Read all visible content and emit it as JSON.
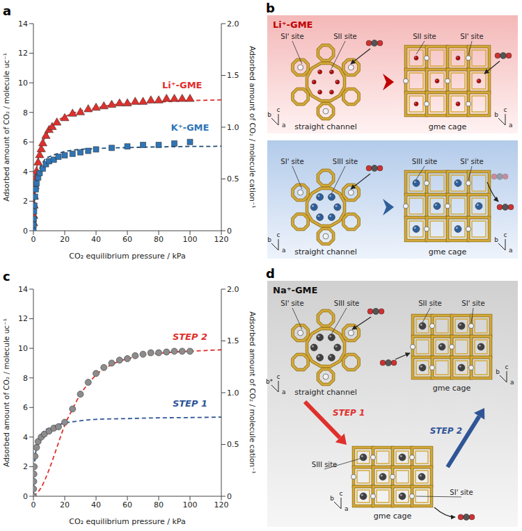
{
  "chart_data": [
    {
      "panel_label": "a",
      "type": "scatter",
      "x_label": "CO₂ equilibrium pressure / kPa",
      "y_label": "Adsorbed amount of CO₂ / molecule uc⁻¹",
      "y2_label": "Adsorbed amount of CO₂ / molecule cation⁻¹",
      "xlim": [
        0,
        120
      ],
      "xticks": [
        0,
        20,
        40,
        60,
        80,
        100,
        120
      ],
      "ylim": [
        0,
        14
      ],
      "yticks": [
        0,
        2,
        4,
        6,
        8,
        10,
        12,
        14
      ],
      "y2lim": [
        0,
        2
      ],
      "y2ticks": [
        0,
        0.5,
        {
          "value": 1,
          "label": "1.0"
        },
        1.5,
        {
          "value": 2,
          "label": "2.0"
        }
      ],
      "series": [
        {
          "type": "line",
          "line_style": "dashed",
          "marker": "none",
          "color": "#e0302c",
          "x": [
            0,
            0.5,
            1,
            2,
            4,
            6,
            8,
            10,
            15,
            20,
            30,
            40,
            50,
            60,
            70,
            80,
            90,
            100,
            110,
            120
          ],
          "values": [
            0,
            2.1,
            3,
            4.1,
            5.3,
            6,
            6.4,
            6.8,
            7.4,
            7.7,
            8.1,
            8.3,
            8.5,
            8.6,
            8.65,
            8.7,
            8.75,
            8.8,
            8.82,
            8.85
          ]
        },
        {
          "type": "line",
          "line_style": "dashed",
          "marker": "none",
          "color": "#1f4e79",
          "x": [
            0,
            0.5,
            1,
            2,
            4,
            6,
            8,
            10,
            15,
            20,
            30,
            40,
            50,
            60,
            70,
            80,
            90,
            100,
            110,
            120
          ],
          "values": [
            0,
            1.6,
            2.5,
            3.4,
            4.2,
            4.6,
            4.9,
            5,
            5.2,
            5.35,
            5.5,
            5.55,
            5.6,
            5.62,
            5.65,
            5.67,
            5.68,
            5.7,
            5.7,
            5.72
          ]
        },
        {
          "name": "Li⁺-GME",
          "type": "scatter",
          "marker": "triangle",
          "color": "#e0302c",
          "x": [
            0,
            0.1,
            0.2,
            0.4,
            0.6,
            1,
            1.5,
            2,
            3,
            4,
            5,
            6,
            8,
            10,
            12,
            15,
            20,
            25,
            30,
            35,
            40,
            45,
            50,
            55,
            60,
            65,
            70,
            75,
            80,
            85,
            90,
            95,
            100
          ],
          "values": [
            0,
            0.5,
            1,
            1.7,
            2.3,
            3,
            3.6,
            4,
            4.6,
            5.1,
            5.5,
            5.9,
            6.4,
            6.8,
            7,
            7.3,
            7.6,
            7.9,
            8,
            8.2,
            8.3,
            8.4,
            8.5,
            8.6,
            8.6,
            8.7,
            8.7,
            8.8,
            8.8,
            8.9,
            8.9,
            8.9,
            8.9
          ]
        },
        {
          "name": "K⁺-GME",
          "type": "scatter",
          "marker": "square",
          "color": "#2e75b6",
          "x": [
            0,
            0.1,
            0.2,
            0.4,
            0.6,
            1,
            1.5,
            2,
            3,
            4,
            6,
            8,
            10,
            13,
            16,
            20,
            25,
            30,
            35,
            40,
            50,
            60,
            70,
            80,
            90,
            100
          ],
          "values": [
            0,
            0.4,
            0.8,
            1.3,
            1.7,
            2.3,
            2.8,
            3.2,
            3.6,
            3.9,
            4.2,
            4.5,
            4.7,
            4.8,
            5,
            5.1,
            5.2,
            5.3,
            5.4,
            5.5,
            5.6,
            5.7,
            5.8,
            5.8,
            5.9,
            6
          ]
        }
      ]
    },
    {
      "panel_label": "c",
      "type": "scatter",
      "x_label": "CO₂ equilibrium pressure / kPa",
      "y_label": "Adsorbed amount of CO₂ / molecule uc⁻¹",
      "y2_label": "Adsorbed amount of CO₂ / molecule cation⁻¹",
      "xlim": [
        0,
        120
      ],
      "xticks": [
        0,
        20,
        40,
        60,
        80,
        100,
        120
      ],
      "ylim": [
        0,
        14
      ],
      "yticks": [
        0,
        2,
        4,
        6,
        8,
        10,
        12,
        14
      ],
      "y2lim": [
        0,
        2
      ],
      "y2ticks": [
        0,
        0.5,
        {
          "value": 1,
          "label": "1.0"
        },
        1.5,
        {
          "value": 2,
          "label": "2.0"
        }
      ],
      "series": [
        {
          "name": "STEP 2",
          "type": "line",
          "line_style": "dashed",
          "marker": "none",
          "color": "#e0302c",
          "x": [
            0,
            5,
            10,
            15,
            20,
            25,
            30,
            35,
            40,
            50,
            60,
            70,
            80,
            90,
            100,
            110,
            120
          ],
          "values": [
            0,
            0.6,
            1.8,
            3.3,
            4.8,
            5.9,
            6.9,
            7.6,
            8.2,
            8.9,
            9.3,
            9.5,
            9.65,
            9.75,
            9.8,
            9.85,
            9.9
          ]
        },
        {
          "name": "STEP 1",
          "type": "line",
          "line_style": "dashed",
          "marker": "none",
          "color": "#2f5597",
          "x": [
            0,
            0.5,
            1,
            2,
            4,
            6,
            8,
            10,
            15,
            20,
            30,
            40,
            60,
            80,
            100,
            120
          ],
          "values": [
            0,
            1.7,
            2.5,
            3.3,
            4,
            4.3,
            4.5,
            4.6,
            4.8,
            4.95,
            5.1,
            5.2,
            5.25,
            5.3,
            5.32,
            5.35
          ]
        },
        {
          "type": "scatter",
          "marker": "circle",
          "color": "#8c8c8c",
          "x": [
            0,
            0.1,
            0.2,
            0.3,
            0.5,
            1,
            2,
            3,
            5,
            7,
            10,
            13,
            16,
            20,
            25,
            30,
            35,
            40,
            45,
            50,
            55,
            60,
            65,
            70,
            75,
            80,
            85,
            90,
            95,
            100
          ],
          "values": [
            0,
            0.5,
            1,
            1.5,
            2,
            2.7,
            3.3,
            3.7,
            4,
            4.2,
            4.4,
            4.6,
            4.7,
            5,
            5.9,
            6.9,
            7.7,
            8.3,
            8.7,
            9,
            9.2,
            9.3,
            9.5,
            9.6,
            9.7,
            9.7,
            9.75,
            9.8,
            9.8,
            9.8
          ]
        }
      ]
    }
  ],
  "diagrams": {
    "b": {
      "panel_label": "b",
      "boxes": [
        {
          "title": "Li⁺-GME",
          "color": "#c00000",
          "left": {
            "labels": [
              "SI' site",
              "SII site"
            ],
            "name": "straight channel",
            "axes": [
              "b",
              "c",
              "a"
            ]
          },
          "right": {
            "labels": [
              "SII site",
              "SI' site"
            ],
            "name": "gme cage",
            "axes": [
              "b",
              "c",
              "a"
            ]
          }
        },
        {
          "color": "#2e5f9a",
          "left": {
            "labels": [
              "SI' site",
              "SIII site"
            ],
            "name": "straight channel",
            "axes": [
              "b",
              "c",
              "a"
            ]
          },
          "right": {
            "labels": [
              "SIII site",
              "SI' site"
            ],
            "name": "gme cage",
            "axes": [
              "b",
              "c",
              "a"
            ]
          }
        }
      ]
    },
    "d": {
      "panel_label": "d",
      "title": "Na⁺-GME",
      "color": "#404040",
      "top_left": {
        "labels": [
          "SI' site",
          "SIII site"
        ],
        "name": "straight channel",
        "axes": [
          "b*",
          "c",
          "a"
        ]
      },
      "top_right": {
        "labels": [
          "SII site",
          "SI' site"
        ],
        "name": "gme cage",
        "axes": [
          "b",
          "c",
          "a"
        ]
      },
      "bottom": {
        "labels": [
          "SI' site",
          "SIII site"
        ],
        "name": "gme cage",
        "axes": [
          "b",
          "c",
          "a"
        ]
      },
      "steps": [
        {
          "label": "STEP 1",
          "color": "#e0302c"
        },
        {
          "label": "STEP 2",
          "color": "#2f5597"
        }
      ]
    }
  }
}
